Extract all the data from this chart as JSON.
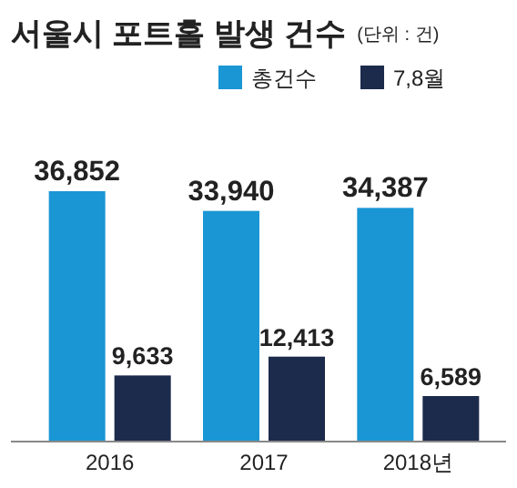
{
  "chart_data": {
    "type": "bar",
    "title": "서울시 포트홀 발생 건수",
    "subtitle": "(단위 : 건)",
    "categories": [
      "2016",
      "2017",
      "2018년"
    ],
    "series": [
      {
        "name": "총건수",
        "color": "#1a96d4",
        "values": [
          36852,
          33940,
          34387
        ],
        "value_labels": [
          "36,852",
          "33,940",
          "34,387"
        ]
      },
      {
        "name": "7,8월",
        "color": "#1c2b4b",
        "values": [
          9633,
          12413,
          6589
        ],
        "value_labels": [
          "9,633",
          "12,413",
          "6,589"
        ]
      }
    ],
    "legend": "top right"
  }
}
